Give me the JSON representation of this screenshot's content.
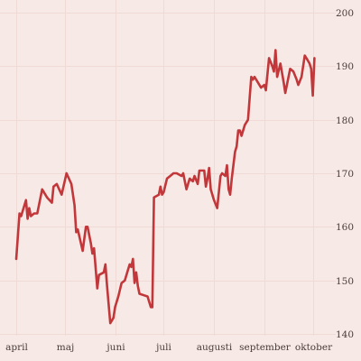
{
  "chart_data": {
    "type": "line",
    "title": "",
    "xlabel": "",
    "ylabel": "",
    "ylim": [
      140,
      200
    ],
    "y_ticks": [
      140,
      150,
      160,
      170,
      180,
      190,
      200
    ],
    "y_axis_side": "right",
    "grid": true,
    "line_color": "#c2373a",
    "background_color": "#f6e9e6",
    "x_ticks": [
      {
        "label": "april",
        "day": 0
      },
      {
        "label": "maj",
        "day": 30
      },
      {
        "label": "juni",
        "day": 61
      },
      {
        "label": "juli",
        "day": 91
      },
      {
        "label": "augusti",
        "day": 122
      },
      {
        "label": "september",
        "day": 153
      },
      {
        "label": "oktober",
        "day": 183
      }
    ],
    "x_range": [
      0,
      191
    ],
    "series": [
      {
        "values": [
          [
            0,
            154
          ],
          [
            2,
            162.5
          ],
          [
            3,
            162
          ],
          [
            6,
            165
          ],
          [
            7,
            161.5
          ],
          [
            8,
            163.5
          ],
          [
            9,
            162
          ],
          [
            11,
            162.5
          ],
          [
            13,
            162.5
          ],
          [
            14,
            164
          ],
          [
            16,
            167
          ],
          [
            19,
            165.5
          ],
          [
            22,
            164.5
          ],
          [
            23,
            167.5
          ],
          [
            25,
            168
          ],
          [
            28,
            166
          ],
          [
            31,
            170
          ],
          [
            34,
            168
          ],
          [
            36,
            164
          ],
          [
            37,
            159
          ],
          [
            38,
            159.5
          ],
          [
            41,
            155.5
          ],
          [
            43,
            160
          ],
          [
            44,
            160
          ],
          [
            46,
            157
          ],
          [
            47,
            155
          ],
          [
            48,
            156
          ],
          [
            50,
            148.5
          ],
          [
            51,
            151
          ],
          [
            54,
            151.5
          ],
          [
            55,
            153
          ],
          [
            56,
            149
          ],
          [
            58,
            142
          ],
          [
            60,
            143
          ],
          [
            61,
            145
          ],
          [
            63,
            147
          ],
          [
            65,
            149.5
          ],
          [
            67,
            150
          ],
          [
            69,
            152
          ],
          [
            70,
            153
          ],
          [
            71,
            152.5
          ],
          [
            72,
            154
          ],
          [
            73,
            149.5
          ],
          [
            74,
            151.5
          ],
          [
            75,
            149
          ],
          [
            76,
            147.5
          ],
          [
            79,
            147.2
          ],
          [
            81,
            147
          ],
          [
            83,
            145
          ],
          [
            84,
            145
          ],
          [
            85,
            165.5
          ],
          [
            88,
            166
          ],
          [
            89,
            167.5
          ],
          [
            90,
            166
          ],
          [
            91,
            166.5
          ],
          [
            93,
            169
          ],
          [
            95,
            169.5
          ],
          [
            97,
            170
          ],
          [
            99,
            170
          ],
          [
            102,
            169.5
          ],
          [
            103,
            170
          ],
          [
            105,
            167
          ],
          [
            107,
            169
          ],
          [
            109,
            168.5
          ],
          [
            110,
            169.5
          ],
          [
            112,
            168
          ],
          [
            113,
            170.5
          ],
          [
            116,
            170.5
          ],
          [
            117,
            167.5
          ],
          [
            118,
            169
          ],
          [
            119,
            171
          ],
          [
            120,
            167
          ],
          [
            122,
            165
          ],
          [
            124,
            163.5
          ],
          [
            126,
            169.5
          ],
          [
            127,
            170
          ],
          [
            129,
            169.5
          ],
          [
            130,
            171.5
          ],
          [
            131,
            167
          ],
          [
            132,
            166
          ],
          [
            133,
            169
          ],
          [
            135,
            174
          ],
          [
            136,
            175
          ],
          [
            137,
            178
          ],
          [
            138,
            178
          ],
          [
            139,
            177
          ],
          [
            141,
            179
          ],
          [
            143,
            180
          ],
          [
            145,
            188
          ],
          [
            146,
            187.5
          ],
          [
            147,
            188
          ],
          [
            149,
            187
          ],
          [
            151,
            186
          ],
          [
            153,
            186.5
          ],
          [
            154,
            185.5
          ],
          [
            156,
            191.5
          ],
          [
            158,
            190
          ],
          [
            159,
            189
          ],
          [
            160,
            193
          ],
          [
            161,
            188
          ],
          [
            163,
            190.5
          ],
          [
            165,
            187
          ],
          [
            166,
            185
          ],
          [
            167,
            186.5
          ],
          [
            169,
            189.5
          ],
          [
            171,
            189
          ],
          [
            173,
            187.5
          ],
          [
            174,
            186.5
          ],
          [
            176,
            188
          ],
          [
            178,
            192
          ],
          [
            179,
            191.5
          ],
          [
            181,
            190.5
          ],
          [
            182,
            189.5
          ],
          [
            183,
            184.5
          ],
          [
            184,
            191.5
          ]
        ]
      }
    ]
  }
}
